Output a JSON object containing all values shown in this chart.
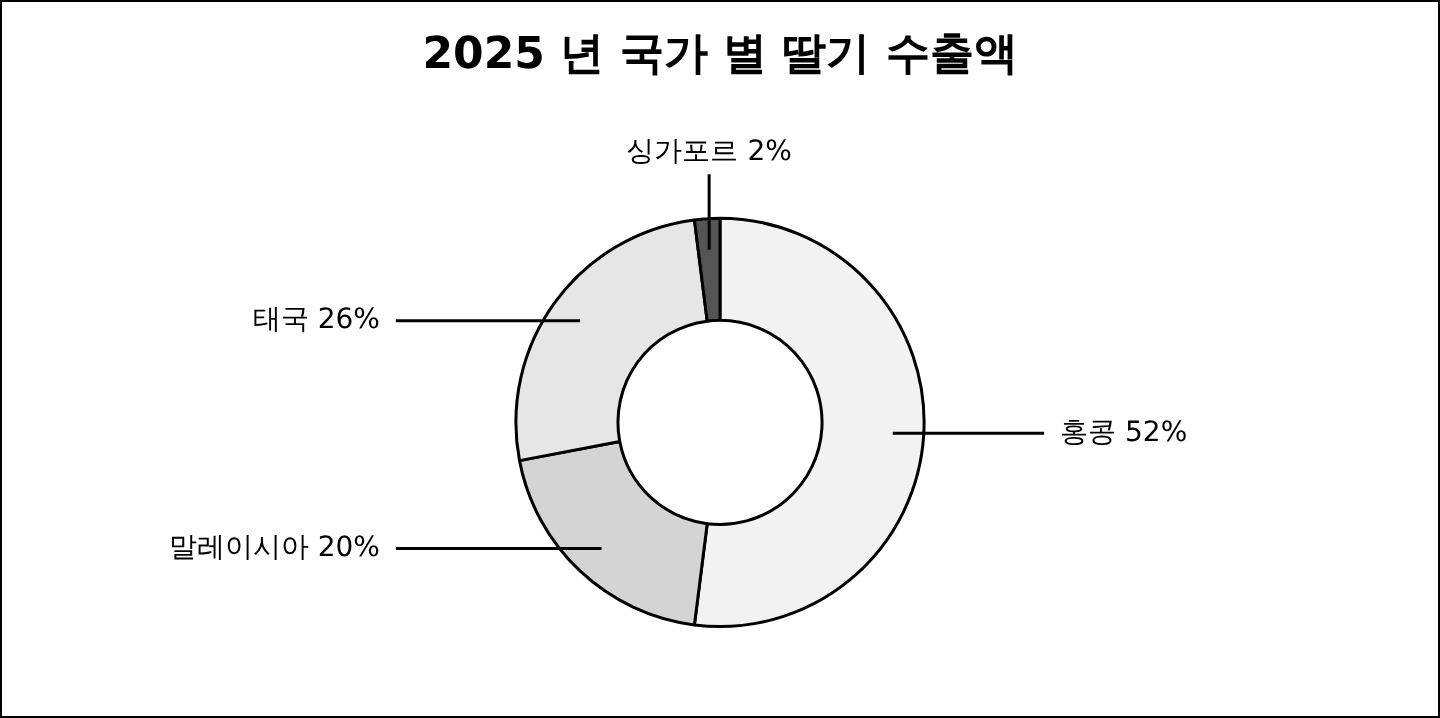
{
  "chart_data": {
    "type": "donut",
    "title": "2025 년 국가 별 딸기 수출액",
    "categories": [
      "홍콩",
      "말레이시아",
      "태국",
      "싱가포르"
    ],
    "values": [
      52,
      20,
      26,
      2
    ],
    "value_labels": [
      "52%",
      "20%",
      "26%",
      "2%"
    ],
    "colors": [
      "#f2f2f2",
      "#d4d4d4",
      "#e6e6e6",
      "#555555"
    ],
    "legend": false
  }
}
